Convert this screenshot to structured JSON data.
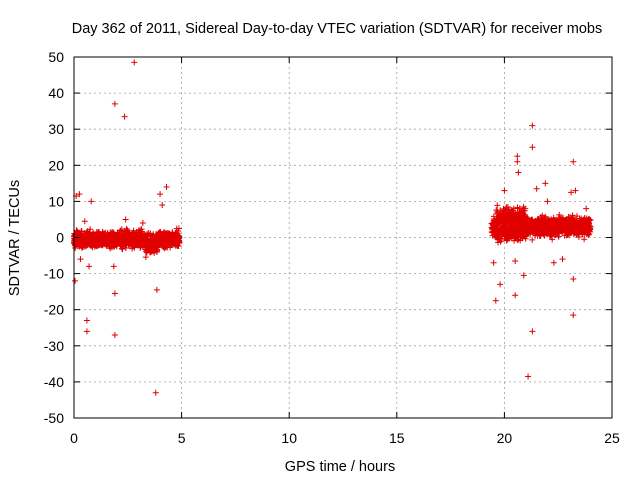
{
  "chart_data": {
    "type": "scatter",
    "title": "Day 362 of 2011, Sidereal Day-to-day VTEC variation (SDTVAR) for receiver mobs",
    "xlabel": "GPS time / hours",
    "ylabel": "SDTVAR / TECUs",
    "xlim": [
      0,
      25
    ],
    "ylim": [
      -50,
      50
    ],
    "xticks": [
      0,
      5,
      10,
      15,
      20,
      25
    ],
    "yticks": [
      -50,
      -40,
      -30,
      -20,
      -10,
      0,
      10,
      20,
      30,
      40,
      50
    ],
    "grid": true,
    "marker": "+",
    "color": "#e00000",
    "dense_bands": [
      {
        "x_start": 0.0,
        "x_end": 4.9,
        "y_center": -0.5,
        "y_spread": 2.2
      },
      {
        "x_start": 19.4,
        "x_end": 24.0,
        "y_center": 3.0,
        "y_spread": 2.5
      }
    ],
    "outliers": [
      [
        0.1,
        11.5
      ],
      [
        0.25,
        12.0
      ],
      [
        0.5,
        4.5
      ],
      [
        0.8,
        10.0
      ],
      [
        0.05,
        -12.0
      ],
      [
        0.3,
        -6.0
      ],
      [
        0.6,
        -23.0
      ],
      [
        0.6,
        -26.0
      ],
      [
        0.7,
        -8.0
      ],
      [
        1.9,
        37.0
      ],
      [
        2.35,
        33.5
      ],
      [
        2.8,
        48.5
      ],
      [
        1.85,
        -8.0
      ],
      [
        1.9,
        -15.5
      ],
      [
        1.9,
        -27.0
      ],
      [
        3.55,
        1.0
      ],
      [
        4.0,
        12.0
      ],
      [
        4.3,
        14.0
      ],
      [
        4.1,
        9.0
      ],
      [
        3.85,
        -14.5
      ],
      [
        3.8,
        -43.0
      ],
      [
        3.2,
        4.0
      ],
      [
        2.4,
        5.0
      ],
      [
        19.6,
        -17.5
      ],
      [
        19.8,
        -13.0
      ],
      [
        19.5,
        -7.0
      ],
      [
        20.0,
        13.0
      ],
      [
        20.6,
        22.5
      ],
      [
        20.6,
        21.0
      ],
      [
        20.65,
        18.0
      ],
      [
        20.5,
        -6.5
      ],
      [
        20.5,
        -16.0
      ],
      [
        20.9,
        -10.5
      ],
      [
        21.3,
        31.0
      ],
      [
        21.3,
        25.0
      ],
      [
        21.5,
        13.5
      ],
      [
        21.9,
        15.0
      ],
      [
        21.3,
        -26.0
      ],
      [
        21.1,
        -38.5
      ],
      [
        22.3,
        -7.0
      ],
      [
        22.7,
        -6.0
      ],
      [
        23.2,
        21.0
      ],
      [
        23.1,
        12.5
      ],
      [
        23.3,
        13.0
      ],
      [
        23.2,
        -11.5
      ],
      [
        23.2,
        -21.5
      ],
      [
        23.8,
        8.0
      ],
      [
        22.0,
        10.0
      ]
    ]
  }
}
